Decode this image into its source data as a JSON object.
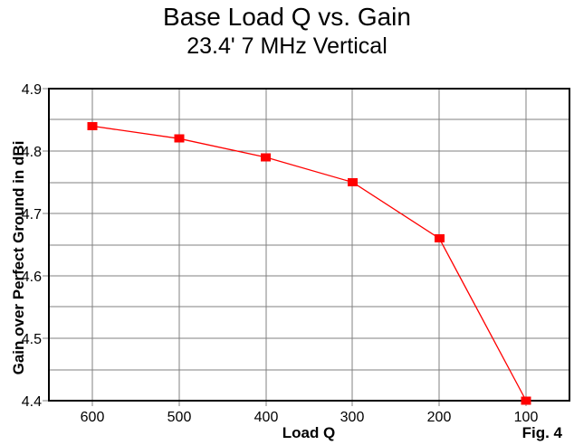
{
  "chart_data": {
    "type": "line",
    "title": "Base Load Q vs. Gain",
    "subtitle": "23.4' 7 MHz Vertical",
    "xlabel": "Load Q",
    "ylabel": "Gain over Perfect Ground in dBi",
    "figure_label": "Fig. 4",
    "x": [
      600,
      500,
      400,
      300,
      200,
      100
    ],
    "y": [
      4.84,
      4.82,
      4.79,
      4.75,
      4.66,
      4.4
    ],
    "x_ticks": [
      600,
      500,
      400,
      300,
      200,
      100
    ],
    "y_ticks": [
      4.9,
      4.8,
      4.7,
      4.6,
      4.5,
      4.4
    ],
    "xlim": [
      650,
      50
    ],
    "ylim": [
      4.9,
      4.4
    ],
    "y_minor_step": 0.05,
    "x_axis_reversed": true,
    "grid": true,
    "legend": false,
    "marker_shape": "square",
    "colors": {
      "line": "#ff0000",
      "marker": "#ff0000",
      "grid": "#808080",
      "axis": "#000000",
      "text": "#000000",
      "background": "#ffffff"
    }
  }
}
